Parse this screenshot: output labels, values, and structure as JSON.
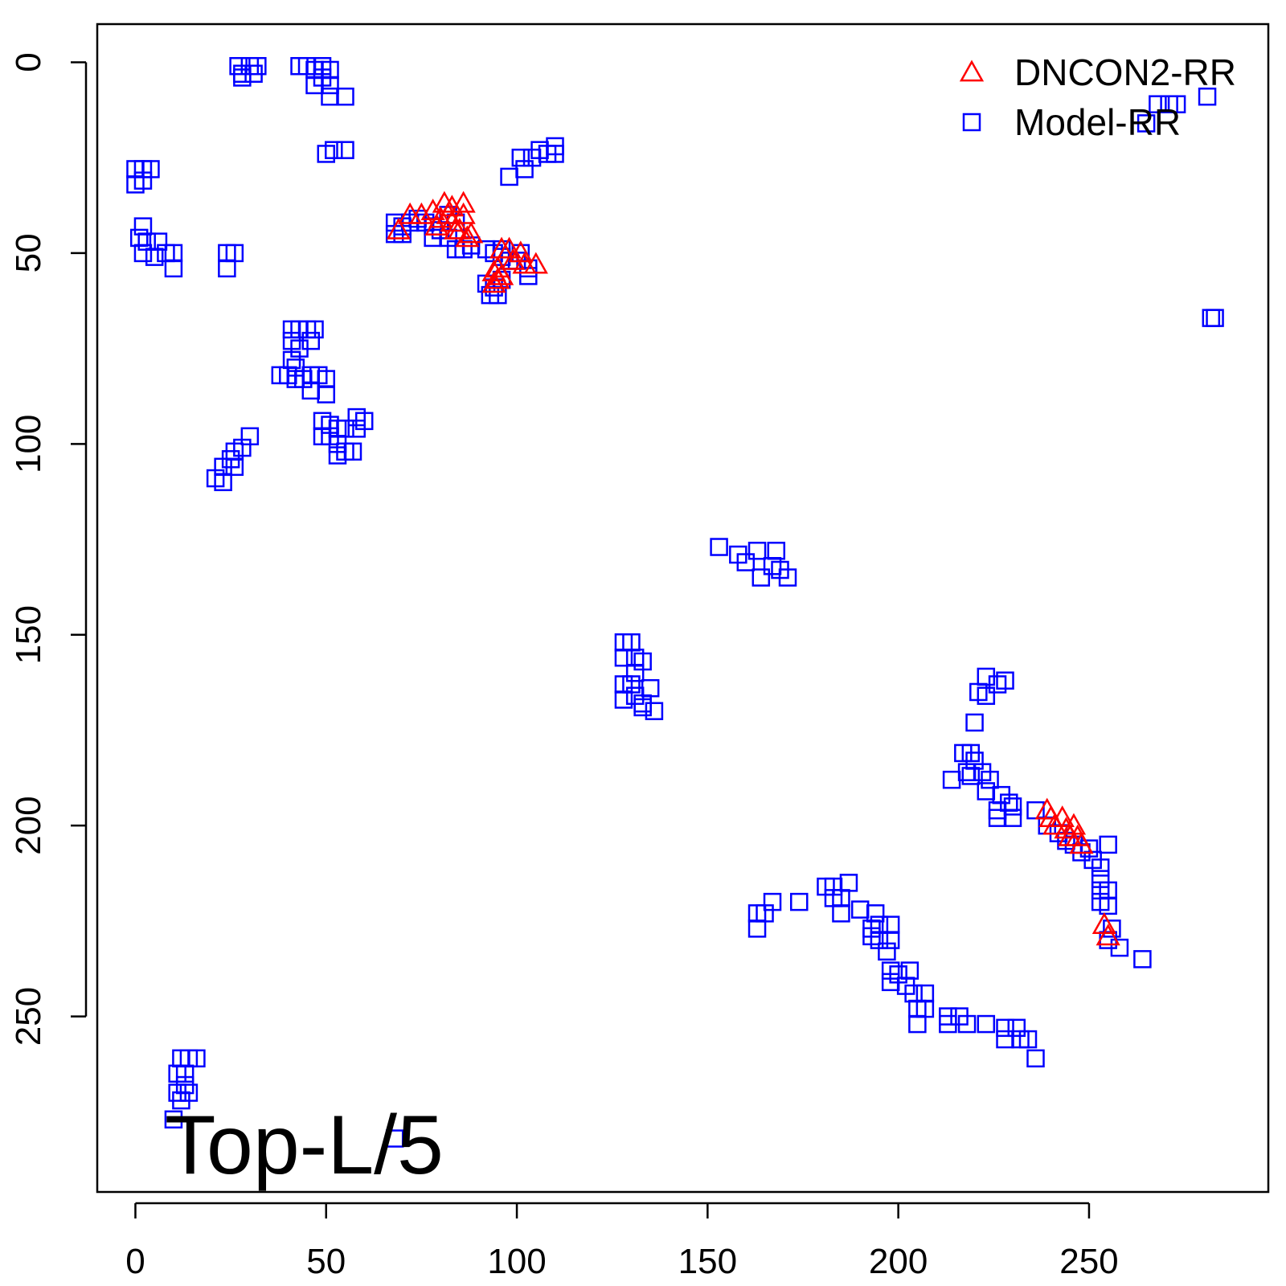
{
  "chart_data": {
    "type": "scatter",
    "title": "",
    "xlabel": "",
    "ylabel": "",
    "xlim": [
      -10,
      297
    ],
    "ylim": [
      -10,
      296
    ],
    "y_reversed": true,
    "x_ticks": [
      0,
      50,
      100,
      150,
      200,
      250
    ],
    "y_ticks": [
      0,
      50,
      100,
      150,
      200,
      250
    ],
    "annotation": "Top-L/5",
    "legend": {
      "position": "top-right",
      "entries": [
        {
          "name": "DNCON2-RR",
          "marker": "triangle",
          "color": "#ff0000"
        },
        {
          "name": "Model-RR",
          "marker": "square",
          "color": "#0000ff"
        }
      ]
    },
    "series": [
      {
        "name": "Model-RR",
        "marker": "square",
        "color": "#0000ff",
        "points": [
          [
            27,
            1
          ],
          [
            28,
            3
          ],
          [
            30,
            1
          ],
          [
            32,
            1
          ],
          [
            28,
            4
          ],
          [
            31,
            3
          ],
          [
            43,
            1
          ],
          [
            45,
            1
          ],
          [
            47,
            2
          ],
          [
            49,
            1
          ],
          [
            51,
            2
          ],
          [
            47,
            6
          ],
          [
            49,
            4
          ],
          [
            51,
            6
          ],
          [
            51,
            9
          ],
          [
            55,
            9
          ],
          [
            50,
            24
          ],
          [
            52,
            23
          ],
          [
            55,
            23
          ],
          [
            0,
            28
          ],
          [
            2,
            28
          ],
          [
            4,
            28
          ],
          [
            0,
            32
          ],
          [
            2,
            31
          ],
          [
            2,
            43
          ],
          [
            1,
            46
          ],
          [
            3,
            47
          ],
          [
            6,
            47
          ],
          [
            2,
            50
          ],
          [
            5,
            51
          ],
          [
            8,
            50
          ],
          [
            10,
            50
          ],
          [
            10,
            54
          ],
          [
            24,
            50
          ],
          [
            26,
            50
          ],
          [
            24,
            54
          ],
          [
            68,
            42
          ],
          [
            70,
            43
          ],
          [
            72,
            42
          ],
          [
            74,
            41
          ],
          [
            70,
            45
          ],
          [
            68,
            45
          ],
          [
            76,
            42
          ],
          [
            78,
            43
          ],
          [
            78,
            46
          ],
          [
            80,
            44
          ],
          [
            82,
            40
          ],
          [
            84,
            42
          ],
          [
            82,
            46
          ],
          [
            84,
            49
          ],
          [
            86,
            49
          ],
          [
            88,
            48
          ],
          [
            98,
            30
          ],
          [
            101,
            25
          ],
          [
            102,
            28
          ],
          [
            104,
            25
          ],
          [
            106,
            23
          ],
          [
            108,
            24
          ],
          [
            110,
            22
          ],
          [
            110,
            24
          ],
          [
            92,
            49
          ],
          [
            94,
            50
          ],
          [
            96,
            51
          ],
          [
            96,
            49
          ],
          [
            98,
            52
          ],
          [
            100,
            52
          ],
          [
            101,
            50
          ],
          [
            103,
            54
          ],
          [
            103,
            56
          ],
          [
            92,
            58
          ],
          [
            94,
            59
          ],
          [
            96,
            57
          ],
          [
            95,
            61
          ],
          [
            93,
            61
          ],
          [
            41,
            70
          ],
          [
            43,
            70
          ],
          [
            45,
            70
          ],
          [
            47,
            70
          ],
          [
            41,
            73
          ],
          [
            43,
            75
          ],
          [
            46,
            73
          ],
          [
            41,
            78
          ],
          [
            42,
            80
          ],
          [
            38,
            82
          ],
          [
            40,
            82
          ],
          [
            42,
            83
          ],
          [
            44,
            83
          ],
          [
            46,
            82
          ],
          [
            48,
            82
          ],
          [
            50,
            83
          ],
          [
            46,
            86
          ],
          [
            50,
            87
          ],
          [
            49,
            94
          ],
          [
            51,
            95
          ],
          [
            49,
            98
          ],
          [
            51,
            98
          ],
          [
            53,
            96
          ],
          [
            55,
            96
          ],
          [
            58,
            93
          ],
          [
            60,
            94
          ],
          [
            58,
            96
          ],
          [
            53,
            100
          ],
          [
            55,
            102
          ],
          [
            57,
            102
          ],
          [
            53,
            103
          ],
          [
            26,
            102
          ],
          [
            28,
            101
          ],
          [
            30,
            98
          ],
          [
            25,
            104
          ],
          [
            26,
            106
          ],
          [
            23,
            106
          ],
          [
            21,
            109
          ],
          [
            23,
            110
          ],
          [
            153,
            127
          ],
          [
            158,
            129
          ],
          [
            163,
            128
          ],
          [
            168,
            128
          ],
          [
            160,
            131
          ],
          [
            167,
            132
          ],
          [
            169,
            133
          ],
          [
            164,
            135
          ],
          [
            171,
            135
          ],
          [
            128,
            152
          ],
          [
            130,
            152
          ],
          [
            128,
            156
          ],
          [
            131,
            156
          ],
          [
            133,
            157
          ],
          [
            131,
            160
          ],
          [
            128,
            163
          ],
          [
            130,
            163
          ],
          [
            135,
            164
          ],
          [
            128,
            167
          ],
          [
            131,
            166
          ],
          [
            133,
            168
          ],
          [
            133,
            169
          ],
          [
            136,
            170
          ],
          [
            223,
            161
          ],
          [
            226,
            163
          ],
          [
            228,
            162
          ],
          [
            221,
            165
          ],
          [
            223,
            166
          ],
          [
            220,
            173
          ],
          [
            217,
            181
          ],
          [
            219,
            181
          ],
          [
            220,
            183
          ],
          [
            218,
            186
          ],
          [
            219,
            187
          ],
          [
            214,
            188
          ],
          [
            222,
            186
          ],
          [
            224,
            188
          ],
          [
            223,
            191
          ],
          [
            227,
            192
          ],
          [
            229,
            194
          ],
          [
            226,
            196
          ],
          [
            226,
            198
          ],
          [
            230,
            195
          ],
          [
            230,
            198
          ],
          [
            236,
            196
          ],
          [
            239,
            200
          ],
          [
            242,
            202
          ],
          [
            244,
            204
          ],
          [
            246,
            205
          ],
          [
            248,
            207
          ],
          [
            250,
            206
          ],
          [
            251,
            209
          ],
          [
            253,
            211
          ],
          [
            255,
            205
          ],
          [
            253,
            214
          ],
          [
            253,
            217
          ],
          [
            255,
            217
          ],
          [
            253,
            220
          ],
          [
            255,
            221
          ],
          [
            163,
            223
          ],
          [
            165,
            223
          ],
          [
            163,
            227
          ],
          [
            167,
            220
          ],
          [
            174,
            220
          ],
          [
            181,
            216
          ],
          [
            183,
            216
          ],
          [
            187,
            215
          ],
          [
            183,
            219
          ],
          [
            185,
            219
          ],
          [
            185,
            223
          ],
          [
            190,
            222
          ],
          [
            194,
            223
          ],
          [
            193,
            227
          ],
          [
            195,
            226
          ],
          [
            198,
            226
          ],
          [
            193,
            229
          ],
          [
            195,
            230
          ],
          [
            198,
            230
          ],
          [
            197,
            233
          ],
          [
            198,
            238
          ],
          [
            200,
            239
          ],
          [
            203,
            238
          ],
          [
            198,
            241
          ],
          [
            202,
            242
          ],
          [
            204,
            244
          ],
          [
            207,
            244
          ],
          [
            205,
            248
          ],
          [
            207,
            248
          ],
          [
            205,
            252
          ],
          [
            213,
            250
          ],
          [
            216,
            250
          ],
          [
            213,
            252
          ],
          [
            218,
            252
          ],
          [
            223,
            252
          ],
          [
            228,
            253
          ],
          [
            231,
            253
          ],
          [
            228,
            256
          ],
          [
            232,
            256
          ],
          [
            234,
            256
          ],
          [
            236,
            261
          ],
          [
            256,
            227
          ],
          [
            255,
            230
          ],
          [
            258,
            232
          ],
          [
            264,
            235
          ],
          [
            265,
            16
          ],
          [
            268,
            11
          ],
          [
            271,
            11
          ],
          [
            273,
            11
          ],
          [
            281,
            9
          ],
          [
            282,
            67
          ],
          [
            283,
            67
          ],
          [
            12,
            261
          ],
          [
            14,
            261
          ],
          [
            16,
            261
          ],
          [
            11,
            265
          ],
          [
            13,
            265
          ],
          [
            13,
            268
          ],
          [
            11,
            270
          ],
          [
            14,
            270
          ],
          [
            12,
            272
          ],
          [
            10,
            277
          ],
          [
            68,
            282
          ]
        ]
      },
      {
        "name": "DNCON2-RR",
        "marker": "triangle",
        "color": "#ff0000",
        "points": [
          [
            69,
            44
          ],
          [
            72,
            40
          ],
          [
            75,
            40
          ],
          [
            78,
            39
          ],
          [
            79,
            43
          ],
          [
            80,
            41
          ],
          [
            81,
            37
          ],
          [
            82,
            40
          ],
          [
            83,
            38
          ],
          [
            83,
            42
          ],
          [
            84,
            44
          ],
          [
            85,
            44
          ],
          [
            86,
            40
          ],
          [
            86,
            37
          ],
          [
            87,
            46
          ],
          [
            88,
            45
          ],
          [
            96,
            49
          ],
          [
            98,
            49
          ],
          [
            99,
            52
          ],
          [
            101,
            50
          ],
          [
            102,
            53
          ],
          [
            105,
            53
          ],
          [
            94,
            58
          ],
          [
            95,
            57
          ],
          [
            96,
            56
          ],
          [
            95,
            54
          ],
          [
            94,
            55
          ],
          [
            239,
            196
          ],
          [
            240,
            198
          ],
          [
            241,
            200
          ],
          [
            243,
            198
          ],
          [
            244,
            201
          ],
          [
            245,
            203
          ],
          [
            246,
            200
          ],
          [
            247,
            203
          ],
          [
            248,
            205
          ],
          [
            254,
            226
          ],
          [
            255,
            229
          ]
        ]
      }
    ]
  }
}
